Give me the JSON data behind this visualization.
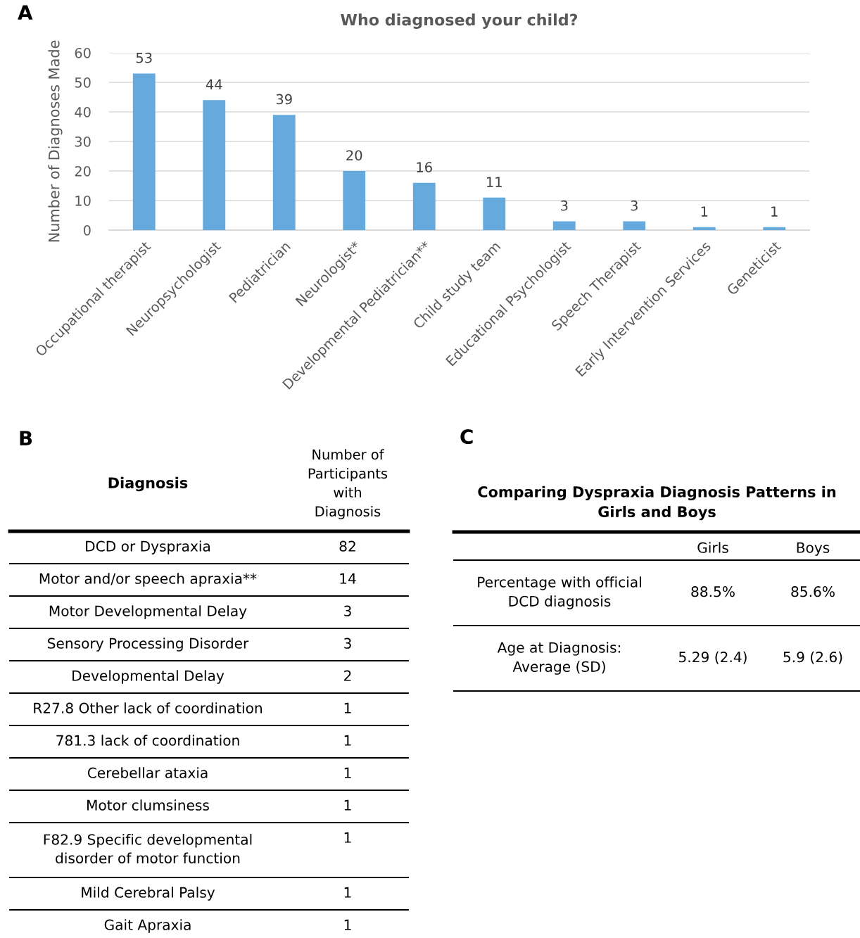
{
  "chart_data": [
    {
      "type": "bar",
      "title": "Who diagnosed your child?",
      "ylabel": "Number of Diagnoses Made",
      "categories": [
        "Occupational therapist",
        "Neuropsychologist",
        "Pediatrician",
        "Neurologist*",
        "Developmental Pediatrician**",
        "Child study team",
        "Educational Psychologist",
        "Speech Therapist",
        "Early Intervention Services",
        "Geneticist"
      ],
      "values": [
        53,
        44,
        39,
        20,
        16,
        11,
        3,
        3,
        1,
        1
      ],
      "color": "#66aadd",
      "ylim": [
        0,
        60
      ],
      "yticks": [
        0,
        10,
        20,
        30,
        40,
        50,
        60
      ],
      "grid": "y",
      "data_labels": true,
      "annotations": [
        "A"
      ]
    },
    {
      "type": "other",
      "xlabel": "Diagnosis",
      "ylabel": "Number of Participants with Diagnosis",
      "categories": [
        "DCD or Dyspraxia",
        "Motor and/or speech apraxia**",
        "Motor Developmental Delay",
        "Sensory Processing Disorder",
        "Developmental Delay",
        "R27.8 Other lack of coordination",
        "781.3 lack of coordination",
        "Cerebellar ataxia",
        "Motor clumsiness",
        "F82.9 Specific developmental disorder of motor function",
        "Mild Cerebral Palsy",
        "Gait Apraxia"
      ],
      "values": [
        82,
        14,
        3,
        3,
        2,
        1,
        1,
        1,
        1,
        1,
        1,
        1
      ],
      "data_labels": true,
      "annotations": [
        "B"
      ]
    },
    {
      "type": "other",
      "title": "Comparing Dyspraxia Diagnosis Patterns in Girls and Boys",
      "categories": [
        "Percentage with official DCD diagnosis",
        "Age at Diagnosis: Average (SD)"
      ],
      "series": [
        {
          "name": "Girls",
          "values": [
            88.5,
            5.29
          ],
          "value_labels": [
            "88.5%",
            "5.29 (2.4)"
          ]
        },
        {
          "name": "Boys",
          "values": [
            85.6,
            5.9
          ],
          "value_labels": [
            "85.6%",
            "5.9 (2.6)"
          ]
        }
      ],
      "annotations": [
        "C"
      ]
    }
  ]
}
